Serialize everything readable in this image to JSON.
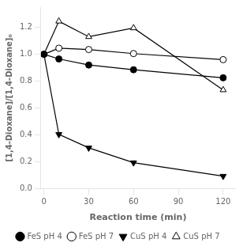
{
  "chart_data": {
    "type": "line",
    "xlabel": "Reaction time (min)",
    "ylabel": "[1,4-Dioxane]/[1,4-Dioxane]₀",
    "x": [
      0,
      10,
      30,
      60,
      120
    ],
    "xlim": [
      -2,
      128
    ],
    "ylim": [
      0.0,
      1.35
    ],
    "xticks": [
      0,
      30,
      60,
      90,
      120
    ],
    "yticks": [
      {
        "value": 0.0,
        "label": "0.0"
      },
      0.2,
      0.4,
      0.6,
      0.8,
      {
        "value": 1.0,
        "label": "1.0"
      },
      1.2
    ],
    "grid": false,
    "legend": "bottom",
    "series": [
      {
        "name": "FeS pH 4",
        "color": "black",
        "marker": "circle",
        "line_style": "solid",
        "values": [
          1.0,
          0.965,
          0.92,
          0.885,
          0.825
        ]
      },
      {
        "name": "FeS pH 7",
        "color": "black",
        "marker": "open_circle",
        "line_style": "solid",
        "values": [
          1.0,
          1.045,
          1.035,
          1.005,
          0.96
        ]
      },
      {
        "name": "CuS pH 4",
        "color": "black",
        "marker": "triangle_down",
        "line_style": "solid",
        "values": [
          1.0,
          0.405,
          0.305,
          0.195,
          0.095
        ]
      },
      {
        "name": "CuS pH 7",
        "color": "black",
        "marker": "open_triangle_up",
        "line_style": "solid",
        "values": [
          1.0,
          1.245,
          1.13,
          1.195,
          0.735
        ]
      }
    ]
  }
}
